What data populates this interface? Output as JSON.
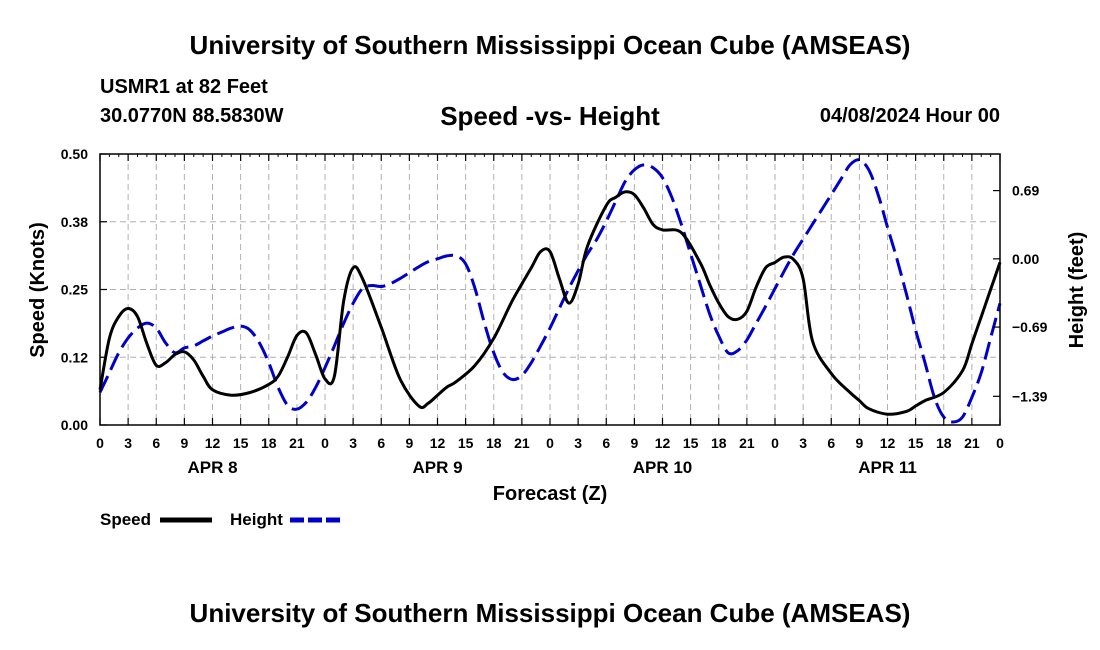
{
  "header": {
    "main_title": "University of Southern Mississippi Ocean Cube (AMSEAS)",
    "station": "USMR1 at 82 Feet",
    "coords": "30.0770N  88.5830W",
    "chart_title": "Speed -vs- Height",
    "run_time": "04/08/2024 Hour 00",
    "footer_title": "University of Southern Mississippi Ocean Cube (AMSEAS)"
  },
  "chart_data": {
    "type": "line",
    "title": "Speed -vs- Height",
    "xlabel": "Forecast (Z)",
    "ylabel_left": "Speed (Knots)",
    "ylabel_right": "Height (feet)",
    "x_range_hours": [
      0,
      96
    ],
    "y_left_range": [
      0,
      0.5
    ],
    "y_right_range": [
      -1.68,
      1.06
    ],
    "grid": true,
    "x_tick_hours": [
      0,
      3,
      6,
      9,
      12,
      15,
      18,
      21,
      24,
      27,
      30,
      33,
      36,
      39,
      42,
      45,
      48,
      51,
      54,
      57,
      60,
      63,
      66,
      69,
      72,
      75,
      78,
      81,
      84,
      87,
      90,
      93,
      96
    ],
    "x_tick_labels": [
      "0",
      "3",
      "6",
      "9",
      "12",
      "15",
      "18",
      "21",
      "0",
      "3",
      "6",
      "9",
      "12",
      "15",
      "18",
      "21",
      "0",
      "3",
      "6",
      "9",
      "12",
      "15",
      "18",
      "21",
      "0",
      "3",
      "6",
      "9",
      "12",
      "15",
      "18",
      "21",
      "0"
    ],
    "day_labels": [
      {
        "label": "APR 8",
        "hour": 12
      },
      {
        "label": "APR 9",
        "hour": 36
      },
      {
        "label": "APR 10",
        "hour": 60
      },
      {
        "label": "APR 11",
        "hour": 84
      }
    ],
    "y_left_ticks": [
      0,
      0.125,
      0.25,
      0.375,
      0.5
    ],
    "y_left_tick_labels": [
      "0.00",
      "0.12",
      "0.25",
      "0.38",
      "0.50"
    ],
    "y_right_ticks": [
      -1.39,
      -0.69,
      0.0,
      0.69
    ],
    "y_right_tick_labels": [
      "−1.39",
      "−0.69",
      "0.00",
      "0.69"
    ],
    "legend": [
      {
        "name": "Speed",
        "color": "#000000",
        "style": "solid"
      },
      {
        "name": "Height",
        "color": "#0000cc",
        "style": "dashed"
      }
    ],
    "series": [
      {
        "name": "Speed",
        "axis": "left",
        "color": "#000000",
        "x": [
          0,
          1,
          2,
          3,
          4,
          5,
          6,
          7,
          8,
          9,
          10,
          11,
          12,
          14,
          16,
          18,
          19,
          20,
          21,
          22,
          23,
          24,
          25,
          26,
          27,
          28,
          30,
          32,
          34,
          35,
          36,
          37,
          38,
          40,
          42,
          44,
          46,
          47,
          48,
          49,
          50,
          51,
          52,
          54,
          55,
          56,
          57,
          58,
          59,
          60,
          62,
          64,
          65,
          66,
          67,
          68,
          69,
          70,
          71,
          72,
          73,
          74,
          75,
          76,
          78,
          80,
          81,
          82,
          84,
          86,
          87,
          88,
          90,
          92,
          93,
          94,
          95,
          96
        ],
        "y": [
          0.065,
          0.16,
          0.2,
          0.215,
          0.2,
          0.15,
          0.11,
          0.115,
          0.13,
          0.135,
          0.12,
          0.09,
          0.065,
          0.055,
          0.06,
          0.075,
          0.09,
          0.125,
          0.165,
          0.17,
          0.13,
          0.085,
          0.09,
          0.23,
          0.29,
          0.27,
          0.18,
          0.085,
          0.035,
          0.04,
          0.055,
          0.07,
          0.08,
          0.11,
          0.16,
          0.23,
          0.29,
          0.32,
          0.32,
          0.27,
          0.225,
          0.26,
          0.33,
          0.405,
          0.42,
          0.43,
          0.425,
          0.4,
          0.37,
          0.36,
          0.355,
          0.3,
          0.26,
          0.225,
          0.2,
          0.195,
          0.21,
          0.255,
          0.29,
          0.3,
          0.31,
          0.305,
          0.27,
          0.155,
          0.095,
          0.06,
          0.045,
          0.03,
          0.02,
          0.025,
          0.035,
          0.045,
          0.06,
          0.1,
          0.15,
          0.2,
          0.25,
          0.3
        ]
      },
      {
        "name": "Height",
        "axis": "right",
        "color": "#0000cc",
        "x": [
          0,
          1,
          2,
          3,
          4,
          5,
          6,
          7,
          8,
          9,
          10,
          11,
          12,
          13,
          14,
          15,
          16,
          17,
          18,
          19,
          20,
          21,
          22,
          23,
          24,
          25,
          26,
          27,
          28,
          29,
          30,
          31,
          32,
          33,
          34,
          35,
          36,
          37,
          38,
          39,
          40,
          41,
          42,
          43,
          44,
          45,
          46,
          47,
          48,
          49,
          50,
          51,
          52,
          53,
          54,
          55,
          56,
          57,
          58,
          59,
          60,
          61,
          62,
          63,
          64,
          65,
          66,
          67,
          68,
          69,
          70,
          71,
          72,
          73,
          74,
          75,
          76,
          77,
          78,
          79,
          80,
          81,
          82,
          83,
          84,
          85,
          86,
          87,
          88,
          89,
          90,
          91,
          92,
          93,
          94,
          95,
          96
        ],
        "y": [
          -1.35,
          -1.15,
          -0.95,
          -0.8,
          -0.7,
          -0.65,
          -0.7,
          -0.85,
          -0.95,
          -0.9,
          -0.88,
          -0.83,
          -0.78,
          -0.74,
          -0.7,
          -0.68,
          -0.72,
          -0.85,
          -1.05,
          -1.3,
          -1.48,
          -1.52,
          -1.45,
          -1.3,
          -1.1,
          -0.88,
          -0.65,
          -0.45,
          -0.3,
          -0.27,
          -0.28,
          -0.25,
          -0.2,
          -0.14,
          -0.08,
          -0.03,
          0.0,
          0.03,
          0.03,
          -0.05,
          -0.3,
          -0.65,
          -0.95,
          -1.15,
          -1.22,
          -1.18,
          -1.05,
          -0.88,
          -0.7,
          -0.5,
          -0.3,
          -0.12,
          0.05,
          0.2,
          0.38,
          0.58,
          0.78,
          0.9,
          0.95,
          0.92,
          0.82,
          0.62,
          0.35,
          0.05,
          -0.25,
          -0.55,
          -0.78,
          -0.95,
          -0.93,
          -0.82,
          -0.65,
          -0.48,
          -0.3,
          -0.12,
          0.05,
          0.2,
          0.35,
          0.5,
          0.65,
          0.8,
          0.95,
          1.0,
          0.9,
          0.65,
          0.32,
          0.0,
          -0.35,
          -0.72,
          -1.05,
          -1.4,
          -1.6,
          -1.65,
          -1.6,
          -1.4,
          -1.15,
          -0.8,
          -0.45
        ]
      }
    ]
  }
}
